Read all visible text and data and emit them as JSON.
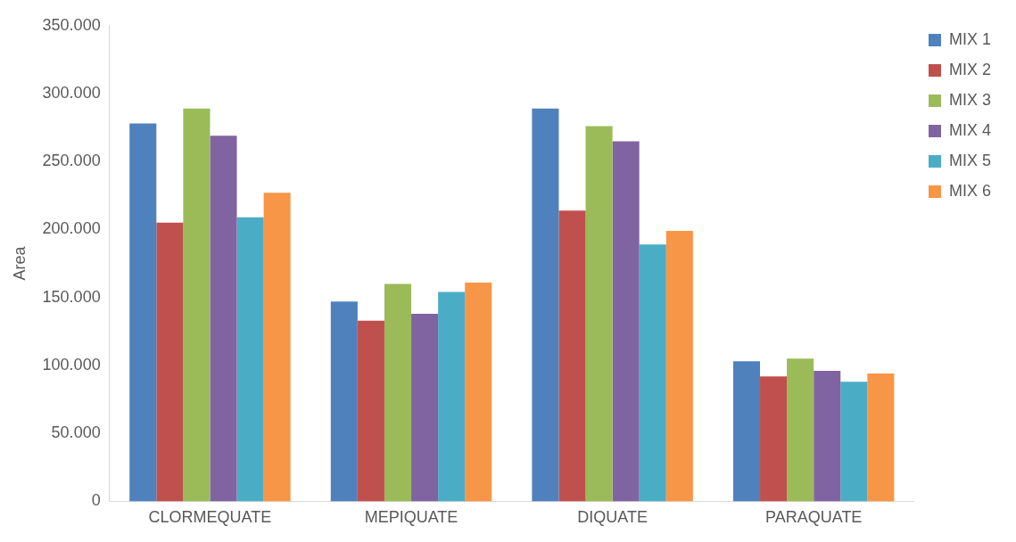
{
  "chart_data": {
    "type": "bar",
    "ylabel": "Area",
    "categories": [
      "CLORMEQUATE",
      "MEPIQUATE",
      "DIQUATE",
      "PARAQUATE"
    ],
    "series": [
      {
        "name": "MIX 1",
        "color": "#4f81bd",
        "values": [
          278000,
          147000,
          289000,
          103000
        ]
      },
      {
        "name": "MIX 2",
        "color": "#c0504d",
        "values": [
          205000,
          133000,
          214000,
          92000
        ]
      },
      {
        "name": "MIX 3",
        "color": "#9bbb59",
        "values": [
          289000,
          160000,
          276000,
          105000
        ]
      },
      {
        "name": "MIX 4",
        "color": "#8064a2",
        "values": [
          269000,
          138000,
          265000,
          96000
        ]
      },
      {
        "name": "MIX 5",
        "color": "#4bacc6",
        "values": [
          209000,
          154000,
          189000,
          88000
        ]
      },
      {
        "name": "MIX 6",
        "color": "#f79646",
        "values": [
          227000,
          161000,
          199000,
          94000
        ]
      }
    ],
    "ylim": [
      0,
      350000
    ],
    "yticks": [
      {
        "value": 0,
        "label": "0"
      },
      {
        "value": 50000,
        "label": "50.000"
      },
      {
        "value": 100000,
        "label": "100.000"
      },
      {
        "value": 150000,
        "label": "150.000"
      },
      {
        "value": 200000,
        "label": "200.000"
      },
      {
        "value": 250000,
        "label": "250.000"
      },
      {
        "value": 300000,
        "label": "300.000"
      },
      {
        "value": 350000,
        "label": "350.000"
      }
    ],
    "grid": false,
    "legend": "right"
  }
}
